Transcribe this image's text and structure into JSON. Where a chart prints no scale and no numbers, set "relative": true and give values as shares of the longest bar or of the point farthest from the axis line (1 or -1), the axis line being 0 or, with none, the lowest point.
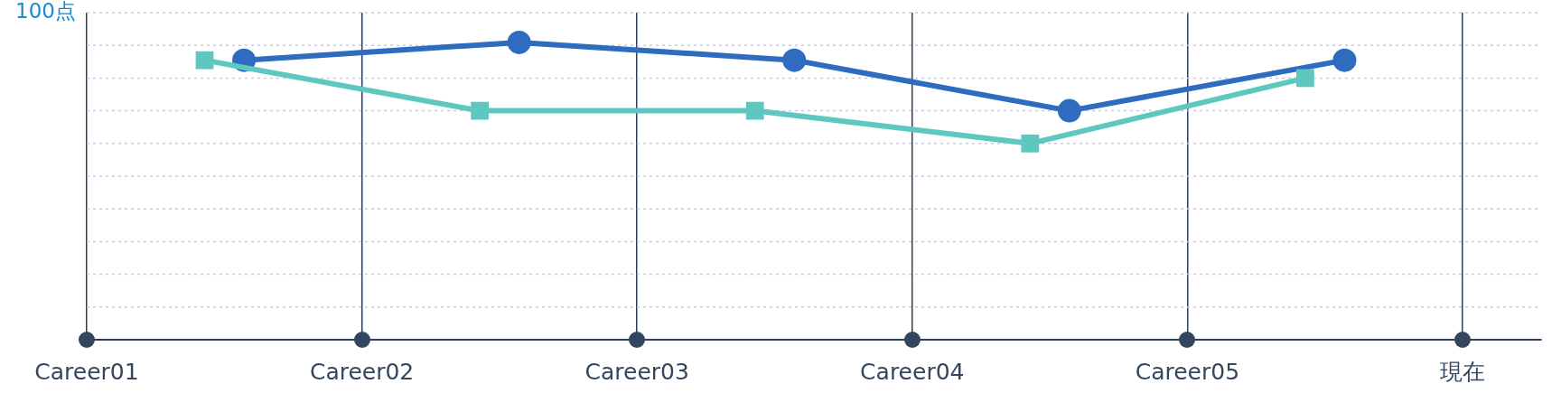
{
  "chart_data": {
    "type": "line",
    "relative": true,
    "categories": [
      "Career01",
      null,
      null,
      null,
      null,
      null,
      null,
      "Career02",
      null,
      null,
      null,
      null,
      null,
      null,
      "Career03",
      null,
      null,
      null,
      null,
      null,
      null,
      "Career04",
      null,
      null,
      null,
      null,
      null,
      null,
      "Career05",
      null,
      null,
      null,
      null,
      null,
      null,
      "現在",
      null,
      null
    ],
    "grid": true,
    "legend": false,
    "line_style": "solid",
    "annotations": [
      "100点"
    ],
    "series": [
      {
        "color": "#5ec8c0",
        "marker": "square",
        "values": [
          null,
          null,
          null,
          0.94,
          null,
          null,
          null,
          null,
          null,
          null,
          0.77,
          null,
          null,
          null,
          null,
          null,
          null,
          0.77,
          null,
          null,
          null,
          null,
          null,
          null,
          0.66,
          null,
          null,
          null,
          null,
          null,
          null,
          0.88,
          null,
          null,
          null,
          null,
          null,
          null
        ]
      },
      {
        "color": "#2f6bbf",
        "marker": "circle",
        "values": [
          null,
          null,
          null,
          null,
          0.94,
          null,
          null,
          null,
          null,
          null,
          null,
          1,
          null,
          null,
          null,
          null,
          null,
          null,
          0.94,
          null,
          null,
          null,
          null,
          null,
          null,
          0.77,
          null,
          null,
          null,
          null,
          null,
          null,
          0.94,
          null,
          null,
          null,
          null,
          null
        ]
      }
    ]
  }
}
